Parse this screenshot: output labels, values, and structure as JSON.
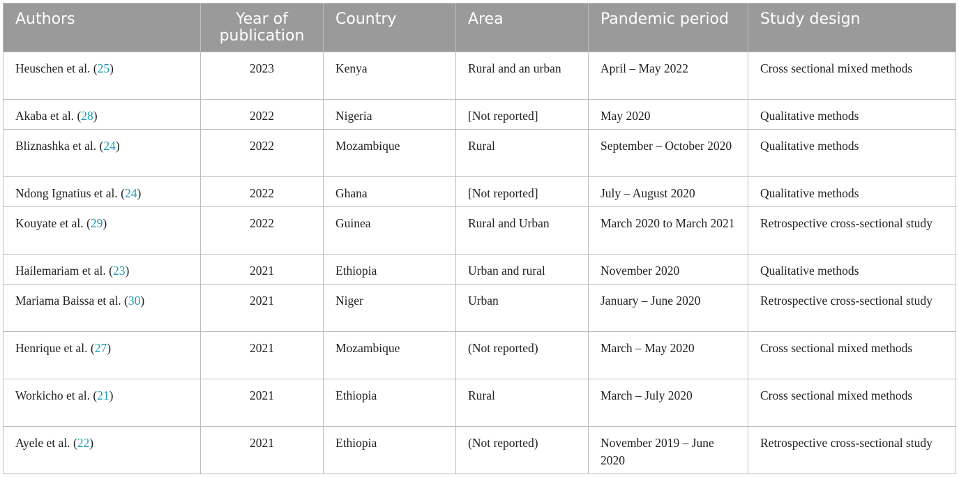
{
  "columns": {
    "authors": "Authors",
    "year": "Year of publication",
    "country": "Country",
    "area": "Area",
    "period": "Pandemic period",
    "design": "Study design"
  },
  "rows": [
    {
      "author": "Heuschen et al.",
      "ref": "25",
      "year": "2023",
      "country": "Kenya",
      "area": "Rural and an urban",
      "period": "April – May 2022",
      "design": "Cross sectional mixed methods"
    },
    {
      "author": "Akaba et al.",
      "ref": "28",
      "year": "2022",
      "country": "Nigeria",
      "area": "[Not reported]",
      "period": "May 2020",
      "design": "Qualitative methods"
    },
    {
      "author": "Bliznashka et al.",
      "ref": "24",
      "year": "2022",
      "country": "Mozambique",
      "area": "Rural",
      "period": "September – October 2020",
      "design": "Qualitative methods"
    },
    {
      "author": "Ndong Ignatius et al.",
      "ref": "24",
      "year": "2022",
      "country": "Ghana",
      "area": "[Not reported]",
      "period": "July – August 2020",
      "design": "Qualitative methods"
    },
    {
      "author": "Kouyate et al.",
      "ref": "29",
      "year": "2022",
      "country": "Guinea",
      "area": "Rural and Urban",
      "period": "March 2020 to March 2021",
      "design": "Retrospective cross-sectional study"
    },
    {
      "author": "Hailemariam et al.",
      "ref": "23",
      "year": "2021",
      "country": "Ethiopia",
      "area": "Urban and rural",
      "period": "November 2020",
      "design": "Qualitative methods"
    },
    {
      "author": "Mariama Baissa et al.",
      "ref": "30",
      "year": "2021",
      "country": "Niger",
      "area": "Urban",
      "period": "January – June 2020",
      "design": "Retrospective cross-sectional study"
    },
    {
      "author": "Henrique et al.",
      "ref": "27",
      "year": "2021",
      "country": "Mozambique",
      "area": "(Not reported)",
      "period": "March – May 2020",
      "design": "Cross sectional mixed methods"
    },
    {
      "author": "Workicho et al.",
      "ref": "21",
      "year": "2021",
      "country": "Ethiopia",
      "area": "Rural",
      "period": "March – July 2020",
      "design": "Cross sectional mixed methods"
    },
    {
      "author": "Ayele et al.",
      "ref": "22",
      "year": "2021",
      "country": "Ethiopia",
      "area": "(Not reported)",
      "period": "November 2019 – June 2020",
      "design": "Retrospective cross-sectional study"
    }
  ]
}
